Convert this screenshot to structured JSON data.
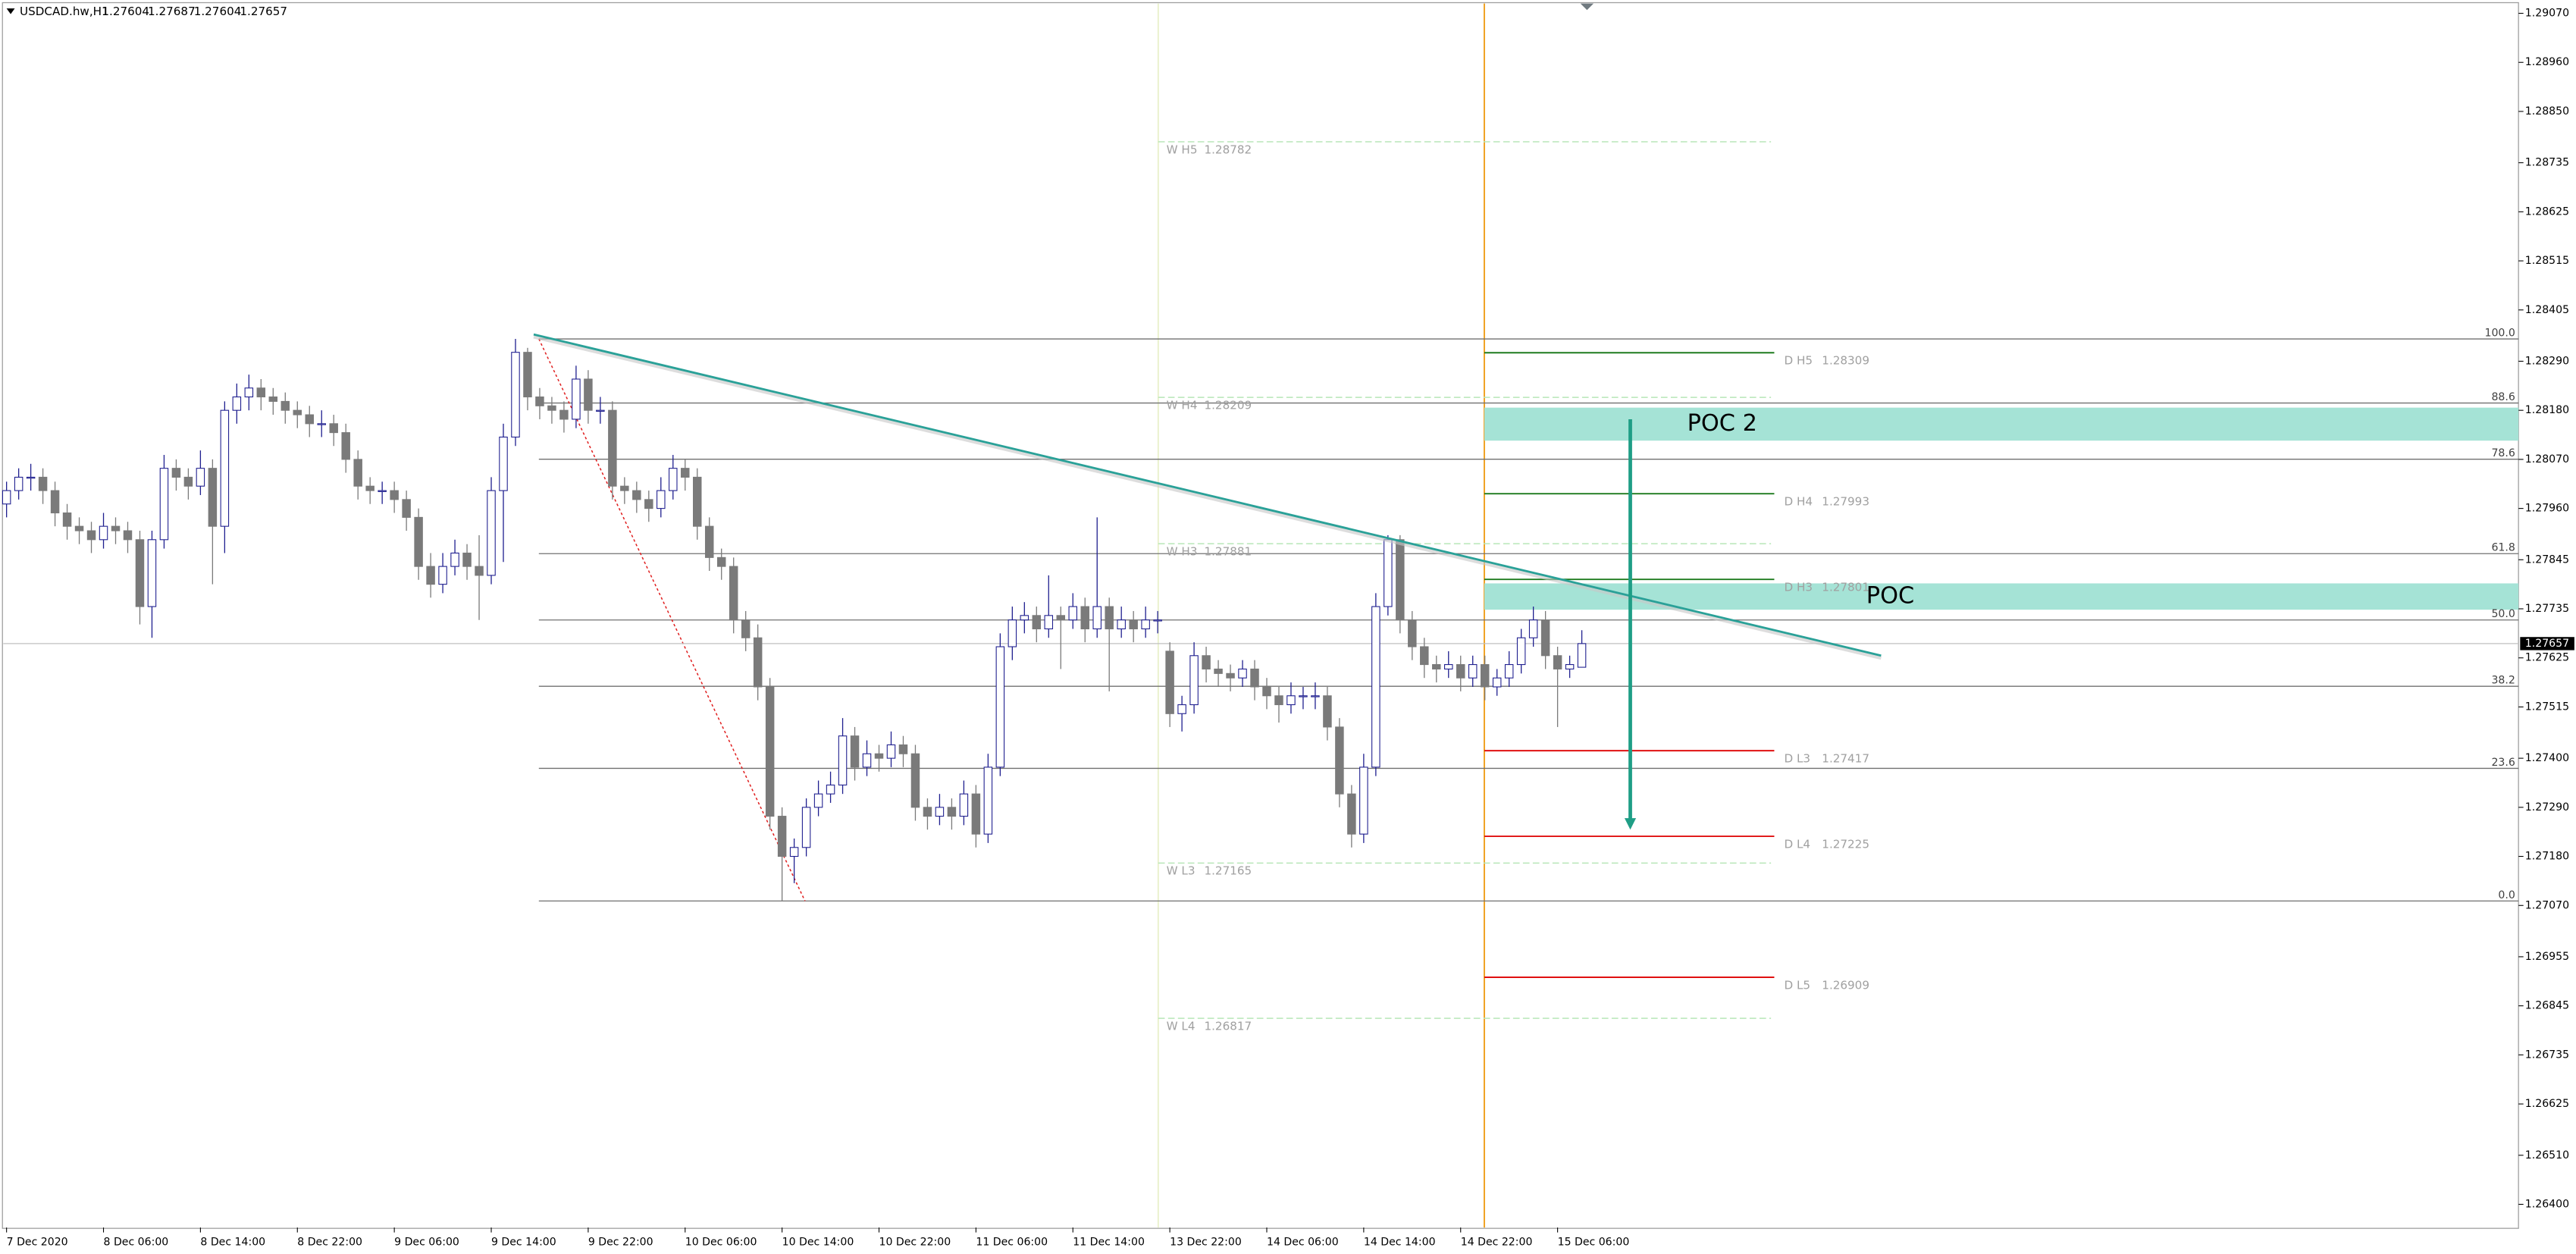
{
  "chart_data": {
    "type": "candlestick",
    "symbol": "USDCAD.hw,H1",
    "up_color": "#1f1f8f",
    "down_color": "#7a7a7a",
    "xlim": [
      -0.27,
      207.3
    ],
    "xticks": [
      {
        "value": 0,
        "label": "7 Dec 2020"
      },
      {
        "value": 8,
        "label": "8 Dec 06:00"
      },
      {
        "value": 16,
        "label": "8 Dec 14:00"
      },
      {
        "value": 24,
        "label": "8 Dec 22:00"
      },
      {
        "value": 32,
        "label": "9 Dec 06:00"
      },
      {
        "value": 40,
        "label": "9 Dec 14:00"
      },
      {
        "value": 48,
        "label": "9 Dec 22:00"
      },
      {
        "value": 56,
        "label": "10 Dec 06:00"
      },
      {
        "value": 64,
        "label": "10 Dec 14:00"
      },
      {
        "value": 72,
        "label": "10 Dec 22:00"
      },
      {
        "value": 80,
        "label": "11 Dec 06:00"
      },
      {
        "value": 88,
        "label": "11 Dec 14:00"
      },
      {
        "value": 96,
        "label": "13 Dec 22:00"
      },
      {
        "value": 104,
        "label": "14 Dec 06:00"
      },
      {
        "value": 112,
        "label": "14 Dec 14:00"
      },
      {
        "value": 120,
        "label": "14 Dec 22:00"
      },
      {
        "value": 128,
        "label": "15 Dec 06:00"
      }
    ],
    "ylim": [
      1.26348,
      1.29092
    ],
    "yticks": [
      {
        "value": 1.2907,
        "label": "1.29070"
      },
      {
        "value": 1.2896,
        "label": "1.28960"
      },
      {
        "value": 1.2885,
        "label": "1.28850"
      },
      1.28735,
      1.28625,
      1.28515,
      1.28405,
      {
        "value": 1.2829,
        "label": "1.28290"
      },
      {
        "value": 1.2818,
        "label": "1.28180"
      },
      {
        "value": 1.2807,
        "label": "1.28070"
      },
      {
        "value": 1.2796,
        "label": "1.27960"
      },
      1.27845,
      1.27735,
      1.27625,
      1.27515,
      {
        "value": 1.274,
        "label": "1.27400"
      },
      {
        "value": 1.2729,
        "label": "1.27290"
      },
      {
        "value": 1.2718,
        "label": "1.27180"
      },
      {
        "value": 1.2707,
        "label": "1.27070"
      },
      1.26955,
      1.26845,
      1.26735,
      1.26625,
      {
        "value": 1.2651,
        "label": "1.26510"
      },
      {
        "value": 1.264,
        "label": "1.26400"
      }
    ],
    "grid": false,
    "ohlc": [
      [
        1.2797,
        1.2802,
        1.2794,
        1.28
      ],
      [
        1.28,
        1.2805,
        1.2798,
        1.2803
      ],
      [
        1.2803,
        1.2806,
        1.28,
        1.2803
      ],
      [
        1.2803,
        1.2805,
        1.2797,
        1.28
      ],
      [
        1.28,
        1.2802,
        1.2792,
        1.2795
      ],
      [
        1.2795,
        1.2797,
        1.2789,
        1.2792
      ],
      [
        1.2792,
        1.2794,
        1.2788,
        1.2791
      ],
      [
        1.2791,
        1.2793,
        1.2786,
        1.2789
      ],
      [
        1.2789,
        1.2795,
        1.2787,
        1.2792
      ],
      [
        1.2792,
        1.2794,
        1.2788,
        1.2791
      ],
      [
        1.2791,
        1.2793,
        1.2786,
        1.2789
      ],
      [
        1.2789,
        1.2791,
        1.277,
        1.2774
      ],
      [
        1.2774,
        1.2791,
        1.2767,
        1.2789
      ],
      [
        1.2789,
        1.2808,
        1.2787,
        1.2805
      ],
      [
        1.2805,
        1.2807,
        1.28,
        1.2803
      ],
      [
        1.2803,
        1.2805,
        1.2798,
        1.2801
      ],
      [
        1.2801,
        1.2809,
        1.2799,
        1.2805
      ],
      [
        1.2805,
        1.2807,
        1.2779,
        1.2792
      ],
      [
        1.2792,
        1.282,
        1.2786,
        1.2818
      ],
      [
        1.2818,
        1.2824,
        1.2815,
        1.2821
      ],
      [
        1.2821,
        1.2826,
        1.2818,
        1.2823
      ],
      [
        1.2823,
        1.2825,
        1.2818,
        1.2821
      ],
      [
        1.2821,
        1.2823,
        1.2817,
        1.282
      ],
      [
        1.282,
        1.2822,
        1.2815,
        1.2818
      ],
      [
        1.2818,
        1.282,
        1.2814,
        1.2817
      ],
      [
        1.2817,
        1.2819,
        1.2812,
        1.2815
      ],
      [
        1.2815,
        1.2818,
        1.2812,
        1.2815
      ],
      [
        1.2815,
        1.2817,
        1.281,
        1.2813
      ],
      [
        1.2813,
        1.2815,
        1.2804,
        1.2807
      ],
      [
        1.2807,
        1.2809,
        1.2798,
        1.2801
      ],
      [
        1.2801,
        1.2803,
        1.2797,
        1.28
      ],
      [
        1.28,
        1.2802,
        1.2797,
        1.28
      ],
      [
        1.28,
        1.2802,
        1.2795,
        1.2798
      ],
      [
        1.2798,
        1.28,
        1.2791,
        1.2794
      ],
      [
        1.2794,
        1.2796,
        1.278,
        1.2783
      ],
      [
        1.2783,
        1.2786,
        1.2776,
        1.2779
      ],
      [
        1.2779,
        1.2786,
        1.2777,
        1.2783
      ],
      [
        1.2783,
        1.2789,
        1.2781,
        1.2786
      ],
      [
        1.2786,
        1.2788,
        1.278,
        1.2783
      ],
      [
        1.2783,
        1.279,
        1.2771,
        1.2781
      ],
      [
        1.2781,
        1.2803,
        1.2779,
        1.28
      ],
      [
        1.28,
        1.2815,
        1.2784,
        1.2812
      ],
      [
        1.2812,
        1.2834,
        1.281,
        1.2831
      ],
      [
        1.2831,
        1.2832,
        1.2818,
        1.2821
      ],
      [
        1.2821,
        1.2823,
        1.2816,
        1.2819
      ],
      [
        1.2819,
        1.2821,
        1.2815,
        1.2818
      ],
      [
        1.2818,
        1.282,
        1.2813,
        1.2816
      ],
      [
        1.2816,
        1.2828,
        1.2814,
        1.2825
      ],
      [
        1.2825,
        1.2827,
        1.2815,
        1.2818
      ],
      [
        1.2818,
        1.2821,
        1.2815,
        1.2818
      ],
      [
        1.2818,
        1.282,
        1.2798,
        1.2801
      ],
      [
        1.2801,
        1.2803,
        1.2797,
        1.28
      ],
      [
        1.28,
        1.2802,
        1.2795,
        1.2798
      ],
      [
        1.2798,
        1.28,
        1.2793,
        1.2796
      ],
      [
        1.2796,
        1.2803,
        1.2794,
        1.28
      ],
      [
        1.28,
        1.2808,
        1.2798,
        1.2805
      ],
      [
        1.2805,
        1.2807,
        1.28,
        1.2803
      ],
      [
        1.2803,
        1.2805,
        1.2789,
        1.2792
      ],
      [
        1.2792,
        1.2794,
        1.2782,
        1.2785
      ],
      [
        1.2785,
        1.2787,
        1.278,
        1.2783
      ],
      [
        1.2783,
        1.2785,
        1.2768,
        1.2771
      ],
      [
        1.2771,
        1.2773,
        1.2764,
        1.2767
      ],
      [
        1.2767,
        1.277,
        1.2753,
        1.2756
      ],
      [
        1.2756,
        1.2758,
        1.2724,
        1.2727
      ],
      [
        1.2727,
        1.2729,
        1.2708,
        1.2718
      ],
      [
        1.2718,
        1.2722,
        1.2712,
        1.272
      ],
      [
        1.272,
        1.2731,
        1.2718,
        1.2729
      ],
      [
        1.2729,
        1.2735,
        1.2727,
        1.2732
      ],
      [
        1.2732,
        1.2737,
        1.273,
        1.2734
      ],
      [
        1.2734,
        1.2749,
        1.2732,
        1.2745
      ],
      [
        1.2745,
        1.2747,
        1.2735,
        1.2738
      ],
      [
        1.2738,
        1.2744,
        1.2736,
        1.2741
      ],
      [
        1.2741,
        1.2743,
        1.2737,
        1.274
      ],
      [
        1.274,
        1.2746,
        1.2738,
        1.2743
      ],
      [
        1.2743,
        1.2745,
        1.2738,
        1.2741
      ],
      [
        1.2741,
        1.2743,
        1.2726,
        1.2729
      ],
      [
        1.2729,
        1.2731,
        1.2724,
        1.2727
      ],
      [
        1.2727,
        1.2732,
        1.2725,
        1.2729
      ],
      [
        1.2729,
        1.2731,
        1.2724,
        1.2727
      ],
      [
        1.2727,
        1.2735,
        1.2725,
        1.2732
      ],
      [
        1.2732,
        1.2734,
        1.272,
        1.2723
      ],
      [
        1.2723,
        1.2741,
        1.2721,
        1.2738
      ],
      [
        1.2738,
        1.2768,
        1.2736,
        1.2765
      ],
      [
        1.2765,
        1.2774,
        1.2762,
        1.2771
      ],
      [
        1.2771,
        1.2775,
        1.2768,
        1.2772
      ],
      [
        1.2772,
        1.2774,
        1.2766,
        1.2769
      ],
      [
        1.2769,
        1.2781,
        1.2767,
        1.2772
      ],
      [
        1.2772,
        1.2774,
        1.276,
        1.2771
      ],
      [
        1.2771,
        1.2777,
        1.2769,
        1.2774
      ],
      [
        1.2774,
        1.2776,
        1.2766,
        1.2769
      ],
      [
        1.2769,
        1.2794,
        1.2767,
        1.2774
      ],
      [
        1.2774,
        1.2776,
        1.2755,
        1.2769
      ],
      [
        1.2769,
        1.2774,
        1.2767,
        1.2771
      ],
      [
        1.2771,
        1.2773,
        1.2766,
        1.2769
      ],
      [
        1.2769,
        1.2774,
        1.2767,
        1.2771
      ],
      [
        1.2771,
        1.2773,
        1.2768,
        1.2771
      ],
      [
        1.2764,
        1.2766,
        1.2747,
        1.275
      ],
      [
        1.275,
        1.2754,
        1.2746,
        1.2752
      ],
      [
        1.2752,
        1.2766,
        1.275,
        1.2763
      ],
      [
        1.2763,
        1.2765,
        1.2757,
        1.276
      ],
      [
        1.276,
        1.2762,
        1.2756,
        1.2759
      ],
      [
        1.2759,
        1.2761,
        1.2755,
        1.2758
      ],
      [
        1.2758,
        1.2762,
        1.2756,
        1.276
      ],
      [
        1.276,
        1.2762,
        1.2753,
        1.2756
      ],
      [
        1.2756,
        1.2758,
        1.2751,
        1.2754
      ],
      [
        1.2754,
        1.2756,
        1.2748,
        1.2752
      ],
      [
        1.2752,
        1.2757,
        1.275,
        1.2754
      ],
      [
        1.2754,
        1.2756,
        1.2751,
        1.2754
      ],
      [
        1.2754,
        1.2757,
        1.2751,
        1.2754
      ],
      [
        1.2754,
        1.2756,
        1.2744,
        1.2747
      ],
      [
        1.2747,
        1.2749,
        1.2729,
        1.2732
      ],
      [
        1.2732,
        1.2734,
        1.272,
        1.2723
      ],
      [
        1.2723,
        1.2741,
        1.2721,
        1.2738
      ],
      [
        1.2738,
        1.2777,
        1.2736,
        1.2774
      ],
      [
        1.2774,
        1.279,
        1.2772,
        1.2789
      ],
      [
        1.2789,
        1.279,
        1.2768,
        1.2771
      ],
      [
        1.2771,
        1.2773,
        1.2762,
        1.2765
      ],
      [
        1.2765,
        1.2767,
        1.2758,
        1.2761
      ],
      [
        1.2761,
        1.2763,
        1.2757,
        1.276
      ],
      [
        1.276,
        1.2764,
        1.2758,
        1.2761
      ],
      [
        1.2761,
        1.2763,
        1.2755,
        1.2758
      ],
      [
        1.2758,
        1.2763,
        1.2756,
        1.2761
      ],
      [
        1.2761,
        1.2763,
        1.2753,
        1.2756
      ],
      [
        1.2756,
        1.276,
        1.2754,
        1.2758
      ],
      [
        1.2758,
        1.2764,
        1.2756,
        1.2761
      ],
      [
        1.2761,
        1.2769,
        1.2759,
        1.2767
      ],
      [
        1.2767,
        1.2774,
        1.2765,
        1.2771
      ],
      [
        1.2771,
        1.2773,
        1.276,
        1.2763
      ],
      [
        1.2763,
        1.2765,
        1.2747,
        1.276
      ],
      [
        1.276,
        1.2763,
        1.2758,
        1.2761
      ],
      [
        1.27604,
        1.27687,
        1.27604,
        1.27657
      ]
    ],
    "fibonacci": {
      "high": 1.2834,
      "low": 1.2708,
      "color": "#707070",
      "levels": [
        {
          "value": 100,
          "label": "100.0"
        },
        88.6,
        78.6,
        61.8,
        {
          "value": 50,
          "label": "50.0"
        },
        38.2,
        23.6,
        {
          "value": 0,
          "label": "0.0"
        }
      ]
    },
    "trendline": {
      "x": [
        43.5,
        154.7
      ],
      "y": [
        1.2835,
        1.2763
      ],
      "color": "#2aa198"
    },
    "weekly_pivots": [
      {
        "name": "W H5",
        "value": 1.28782
      },
      {
        "name": "W H4",
        "value": 1.28209
      },
      {
        "name": "W H3",
        "value": 1.27881
      },
      {
        "name": "W L3",
        "value": 1.27165
      },
      {
        "name": "W L4",
        "value": 1.26817
      }
    ],
    "daily_pivots": [
      {
        "name": "D H5",
        "value": 1.28309,
        "color": "#1e7b1e"
      },
      {
        "name": "D H4",
        "value": 1.27993,
        "color": "#1e7b1e"
      },
      {
        "name": "D H3",
        "value": 1.27801,
        "color": "#1e7b1e"
      },
      {
        "name": "D L3",
        "value": 1.27417,
        "color": "#e01010"
      },
      {
        "name": "D L4",
        "value": 1.27225,
        "color": "#e01010"
      },
      {
        "name": "D L5",
        "value": 1.26909,
        "color": "#e01010"
      }
    ],
    "zones": [
      {
        "label": "POC 2",
        "top": 1.28186,
        "bottom": 1.28112
      },
      {
        "label": "POC",
        "top": 1.27792,
        "bottom": 1.27733
      }
    ],
    "zone_color": "#a5e3d6",
    "arrow": {
      "x": 134,
      "from": 1.2816,
      "to": 1.2724,
      "color": "#1f9e86"
    }
  }
}
